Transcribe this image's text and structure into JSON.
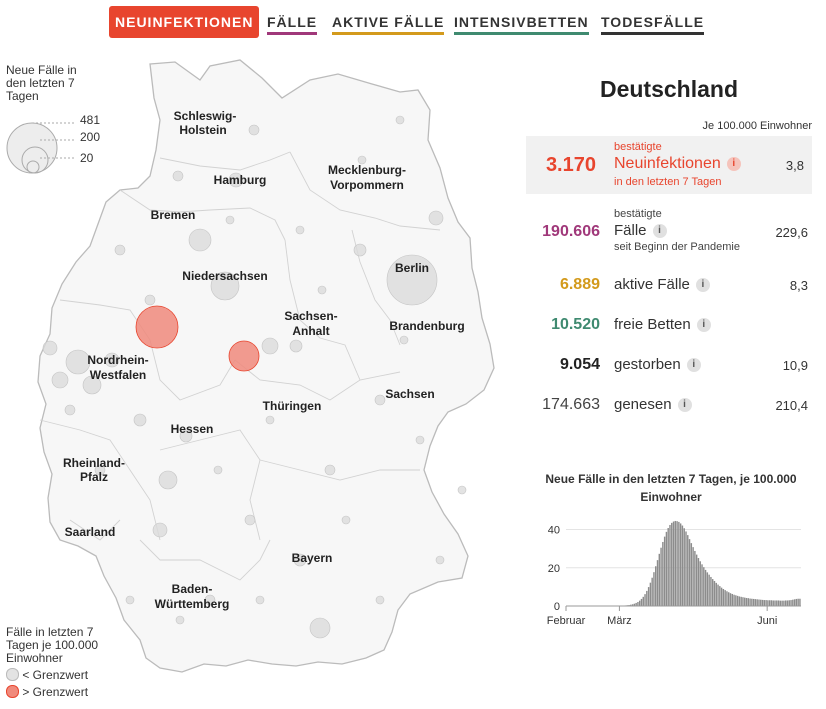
{
  "tabs": [
    {
      "label": "NEUINFEKTIONEN",
      "color": "#e8452e",
      "active": true
    },
    {
      "label": "FÄLLE",
      "color": "#a0387a",
      "active": false
    },
    {
      "label": "AKTIVE FÄLLE",
      "color": "#d39a1c",
      "active": false
    },
    {
      "label": "INTENSIVBETTEN",
      "color": "#3f8a70",
      "active": false
    },
    {
      "label": "TODESFÄLLE",
      "color": "#333333",
      "active": false
    }
  ],
  "map": {
    "states": [
      "Schleswig-Holstein",
      "Hamburg",
      "Mecklenburg-Vorpommern",
      "Bremen",
      "Niedersachsen",
      "Berlin",
      "Brandenburg",
      "Sachsen-Anhalt",
      "Nordrhein-Westfalen",
      "Thüringen",
      "Sachsen",
      "Hessen",
      "Rheinland-Pfalz",
      "Saarland",
      "Bayern",
      "Baden-Württemberg"
    ],
    "size_legend": {
      "title": "Neue Fälle in den letzten 7 Tagen",
      "values": [
        "481",
        "200",
        "20"
      ]
    },
    "color_legend": {
      "title": "Fälle in letzten 7 Tagen je 100.000 Einwohner",
      "below": "< Grenzwert",
      "above": "> Grenzwert",
      "below_color": "#e3e3e3",
      "above_color": "#f08a7c"
    }
  },
  "summary": {
    "country": "Deutschland",
    "per100_label": "Je 100.000 Einwohner",
    "rows": [
      {
        "value": "3.170",
        "pre": "bestätigte",
        "label": "Neuinfektionen",
        "post": "in den letzten 7 Tagen",
        "rate": "3,8",
        "color": "#e8452e",
        "info": "i"
      },
      {
        "value": "190.606",
        "pre": "bestätigte",
        "label": "Fälle",
        "post": "seit Beginn der Pandemie",
        "rate": "229,6",
        "color": "#a0387a",
        "info": "i"
      },
      {
        "value": "6.889",
        "label": "aktive Fälle",
        "rate": "8,3",
        "color": "#d39a1c",
        "info": "i"
      },
      {
        "value": "10.520",
        "label": "freie Betten",
        "rate": "",
        "color": "#3f8a70",
        "info": "i"
      },
      {
        "value": "9.054",
        "label": "gestorben",
        "rate": "10,9",
        "color": "#222222",
        "info": "i"
      },
      {
        "value": "174.663",
        "label": "genesen",
        "rate": "210,4",
        "color": "#444444",
        "info": "i"
      }
    ]
  },
  "chart_data": {
    "type": "bar",
    "title": "Neue Fälle in den letzten 7 Tagen, je 100.000 Einwohner",
    "ylim": [
      0,
      45
    ],
    "y_ticks": [
      "0",
      "20",
      "40"
    ],
    "x_ticks": [
      "Februar",
      "März",
      "Juni"
    ],
    "x_tick_index": [
      0,
      30,
      113
    ],
    "values": [
      0,
      0,
      0,
      0,
      0,
      0,
      0,
      0,
      0,
      0,
      0,
      0,
      0,
      0,
      0,
      0,
      0,
      0,
      0,
      0,
      0,
      0,
      0,
      0,
      0,
      0,
      0,
      0,
      0.1,
      0.1,
      0.1,
      0.2,
      0.2,
      0.3,
      0.4,
      0.5,
      0.7,
      0.9,
      1.2,
      1.6,
      2.1,
      2.8,
      3.7,
      4.8,
      6.2,
      7.9,
      9.9,
      12.2,
      14.8,
      17.7,
      20.8,
      24.0,
      27.3,
      30.5,
      33.5,
      36.3,
      38.8,
      40.8,
      42.4,
      43.5,
      44.2,
      44.5,
      44.4,
      44.0,
      43.2,
      42.1,
      40.7,
      39.0,
      37.1,
      35.0,
      32.9,
      30.8,
      28.8,
      26.9,
      25.1,
      23.4,
      21.8,
      20.3,
      18.9,
      17.6,
      16.4,
      15.2,
      14.1,
      13.1,
      12.1,
      11.2,
      10.4,
      9.6,
      8.9,
      8.3,
      7.7,
      7.2,
      6.7,
      6.3,
      5.9,
      5.6,
      5.3,
      5.0,
      4.8,
      4.6,
      4.4,
      4.2,
      4.1,
      3.9,
      3.8,
      3.7,
      3.6,
      3.5,
      3.4,
      3.3,
      3.2,
      3.1,
      3.1,
      3.0,
      3.0,
      3.0,
      2.9,
      2.9,
      2.9,
      2.9,
      2.8,
      2.8,
      2.8,
      2.9,
      2.9,
      3.0,
      3.1,
      3.3,
      3.5,
      3.7,
      3.8,
      3.8
    ]
  }
}
